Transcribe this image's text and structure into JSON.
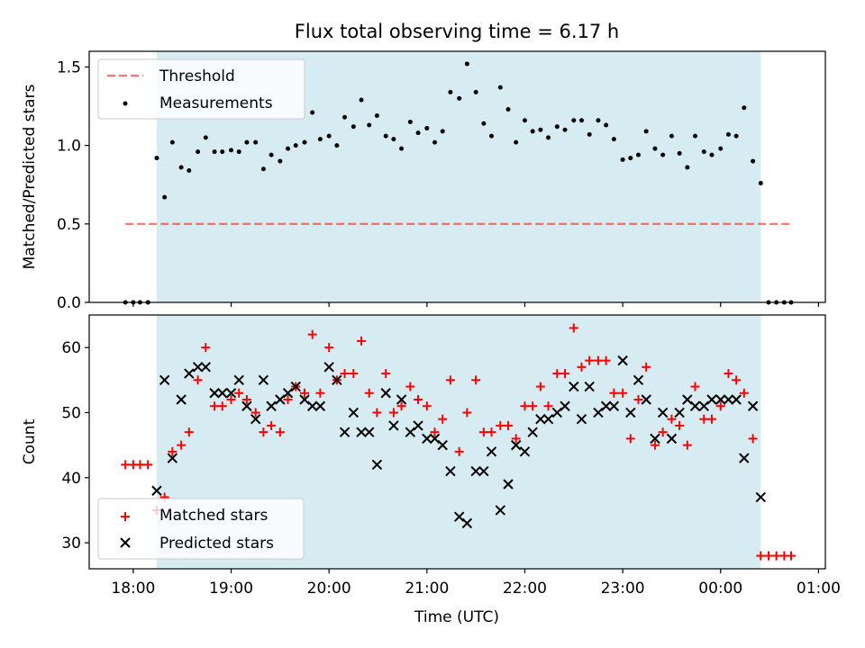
{
  "title": "Flux total observing time = 6.17 h",
  "xlabel": "Time (UTC)",
  "x_tick_labels": [
    "18:00",
    "19:00",
    "20:00",
    "21:00",
    "22:00",
    "23:00",
    "00:00",
    "01:00"
  ],
  "colors": {
    "observing_span": "#add8e6",
    "threshold": "#ff0000",
    "measurements": "#000000",
    "matched": "#ff0000",
    "predicted": "#000000"
  },
  "chart_data": [
    {
      "type": "scatter",
      "ylabel": "Matched/Predicted stars",
      "ylim": [
        0,
        1.6
      ],
      "xlim": [
        17.55,
        25.07
      ],
      "yticks": [
        0.0,
        0.5,
        1.0,
        1.5
      ],
      "ytick_labels": [
        "0.0",
        "0.5",
        "1.0",
        "1.5"
      ],
      "observing_span": [
        18.24,
        24.41
      ],
      "threshold": {
        "name": "Threshold",
        "value": 0.5,
        "x_range": [
          17.92,
          24.72
        ]
      },
      "legend": {
        "position": "upper-left",
        "entries": [
          "Threshold",
          "Measurements"
        ]
      },
      "series": [
        {
          "name": "Measurements",
          "x": [
            17.92,
            18.0,
            18.07,
            18.15,
            18.24,
            18.32,
            18.4,
            18.49,
            18.57,
            18.66,
            18.74,
            18.83,
            18.91,
            19.0,
            19.08,
            19.16,
            19.25,
            19.33,
            19.41,
            19.5,
            19.58,
            19.66,
            19.75,
            19.83,
            19.91,
            20.0,
            20.08,
            20.16,
            20.25,
            20.33,
            20.41,
            20.49,
            20.58,
            20.66,
            20.74,
            20.83,
            20.91,
            21.0,
            21.08,
            21.16,
            21.24,
            21.33,
            21.41,
            21.5,
            21.58,
            21.66,
            21.75,
            21.83,
            21.91,
            22.0,
            22.08,
            22.16,
            22.24,
            22.33,
            22.41,
            22.5,
            22.58,
            22.66,
            22.75,
            22.83,
            22.91,
            23.0,
            23.08,
            23.16,
            23.24,
            23.33,
            23.41,
            23.5,
            23.58,
            23.66,
            23.74,
            23.83,
            23.91,
            24.0,
            24.08,
            24.16,
            24.24,
            24.33,
            24.41,
            24.49,
            24.57,
            24.65,
            24.72
          ],
          "y": [
            0,
            0,
            0,
            0,
            0.92,
            0.67,
            1.02,
            0.86,
            0.84,
            0.96,
            1.05,
            0.96,
            0.96,
            0.97,
            0.96,
            1.02,
            1.02,
            0.85,
            0.94,
            0.9,
            0.98,
            1.0,
            1.02,
            1.21,
            1.04,
            1.06,
            1.0,
            1.18,
            1.12,
            1.29,
            1.13,
            1.19,
            1.06,
            1.04,
            0.98,
            1.15,
            1.08,
            1.11,
            1.02,
            1.09,
            1.34,
            1.3,
            1.52,
            1.34,
            1.14,
            1.06,
            1.37,
            1.23,
            1.02,
            1.16,
            1.09,
            1.1,
            1.05,
            1.12,
            1.1,
            1.16,
            1.16,
            1.07,
            1.16,
            1.13,
            1.04,
            0.91,
            0.92,
            0.94,
            1.09,
            0.98,
            0.94,
            1.06,
            0.95,
            0.86,
            1.06,
            0.96,
            0.94,
            0.98,
            1.07,
            1.06,
            1.24,
            0.9,
            0.76,
            0,
            0,
            0,
            0
          ]
        }
      ]
    },
    {
      "type": "scatter",
      "ylabel": "Count",
      "xlabel": "Time (UTC)",
      "ylim": [
        26,
        65
      ],
      "xlim": [
        17.55,
        25.07
      ],
      "yticks": [
        30,
        40,
        50,
        60
      ],
      "ytick_labels": [
        "30",
        "40",
        "50",
        "60"
      ],
      "observing_span": [
        18.24,
        24.41
      ],
      "legend": {
        "position": "lower-left",
        "entries": [
          "Matched stars",
          "Predicted stars"
        ]
      },
      "series": [
        {
          "name": "Matched stars",
          "marker": "plus",
          "x": [
            17.92,
            18.0,
            18.07,
            18.15,
            18.24,
            18.32,
            18.4,
            18.49,
            18.57,
            18.66,
            18.74,
            18.83,
            18.91,
            19.0,
            19.08,
            19.16,
            19.25,
            19.33,
            19.41,
            19.5,
            19.58,
            19.66,
            19.75,
            19.83,
            19.91,
            20.0,
            20.08,
            20.16,
            20.25,
            20.33,
            20.41,
            20.49,
            20.58,
            20.66,
            20.74,
            20.83,
            20.91,
            21.0,
            21.08,
            21.16,
            21.24,
            21.33,
            21.41,
            21.5,
            21.58,
            21.66,
            21.75,
            21.83,
            21.91,
            22.0,
            22.08,
            22.16,
            22.24,
            22.33,
            22.41,
            22.5,
            22.58,
            22.66,
            22.75,
            22.83,
            22.91,
            23.0,
            23.08,
            23.16,
            23.24,
            23.33,
            23.41,
            23.5,
            23.58,
            23.66,
            23.74,
            23.83,
            23.91,
            24.0,
            24.08,
            24.16,
            24.24,
            24.33,
            24.41,
            24.49,
            24.57,
            24.65,
            24.72
          ],
          "y": [
            42,
            42,
            42,
            42,
            35,
            37,
            44,
            45,
            47,
            55,
            60,
            51,
            51,
            52,
            53,
            52,
            50,
            47,
            48,
            47,
            52,
            54,
            53,
            62,
            53,
            60,
            55,
            56,
            56,
            61,
            53,
            50,
            56,
            50,
            51,
            54,
            52,
            51,
            47,
            49,
            55,
            44,
            50,
            55,
            47,
            47,
            48,
            48,
            46,
            51,
            51,
            54,
            51,
            56,
            56,
            63,
            57,
            58,
            58,
            58,
            53,
            53,
            46,
            52,
            57,
            45,
            47,
            49,
            48,
            45,
            54,
            49,
            49,
            51,
            56,
            55,
            53,
            46,
            28,
            28,
            28,
            28,
            28
          ]
        },
        {
          "name": "Predicted stars",
          "marker": "x",
          "x": [
            18.24,
            18.32,
            18.4,
            18.49,
            18.57,
            18.66,
            18.74,
            18.83,
            18.91,
            19.0,
            19.08,
            19.16,
            19.25,
            19.33,
            19.41,
            19.5,
            19.58,
            19.66,
            19.75,
            19.83,
            19.91,
            20.0,
            20.08,
            20.16,
            20.25,
            20.33,
            20.41,
            20.49,
            20.58,
            20.66,
            20.74,
            20.83,
            20.91,
            21.0,
            21.08,
            21.16,
            21.24,
            21.33,
            21.41,
            21.5,
            21.58,
            21.66,
            21.75,
            21.83,
            21.91,
            22.0,
            22.08,
            22.16,
            22.24,
            22.33,
            22.41,
            22.5,
            22.58,
            22.66,
            22.75,
            22.83,
            22.91,
            23.0,
            23.08,
            23.16,
            23.24,
            23.33,
            23.41,
            23.5,
            23.58,
            23.66,
            23.74,
            23.83,
            23.91,
            24.0,
            24.08,
            24.16,
            24.24,
            24.33,
            24.41
          ],
          "y": [
            38,
            55,
            43,
            52,
            56,
            57,
            57,
            53,
            53,
            53,
            55,
            51,
            49,
            55,
            51,
            52,
            53,
            54,
            52,
            51,
            51,
            57,
            55,
            47,
            50,
            47,
            47,
            42,
            53,
            48,
            52,
            47,
            48,
            46,
            46,
            45,
            41,
            34,
            33,
            41,
            41,
            44,
            35,
            39,
            45,
            44,
            47,
            49,
            49,
            50,
            51,
            54,
            49,
            54,
            50,
            51,
            51,
            58,
            50,
            55,
            52,
            46,
            50,
            46,
            50,
            52,
            51,
            51,
            52,
            52,
            52,
            52,
            43,
            51,
            37
          ]
        }
      ]
    }
  ]
}
